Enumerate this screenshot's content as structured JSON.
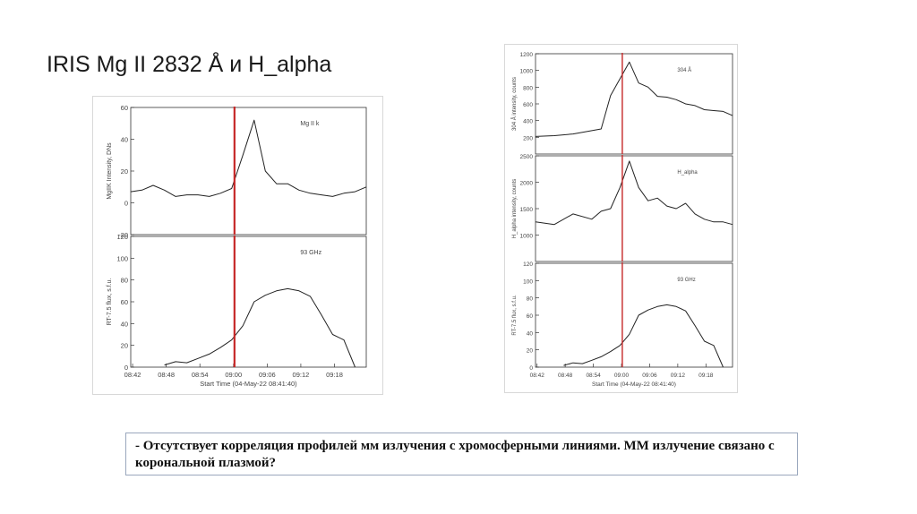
{
  "slide": {
    "title": "IRIS Mg II 2832 Å и H_alpha",
    "note": "- Отсутствует корреляция профилей мм излучения с хромосферными линиями. ММ излучение связано с корональной плазмой?"
  },
  "chart_data": [
    {
      "type": "line",
      "figure": "left",
      "ylabel": "MgIIK Intensity, DNs",
      "panel_label": "Mg II k",
      "ylim": [
        -20,
        60
      ],
      "yticks": [
        -20,
        0,
        20,
        40,
        60
      ],
      "xlim": [
        0,
        42
      ],
      "x_unit": "minutes since 08:41:40",
      "series": [
        {
          "x": [
            0,
            2,
            4,
            6,
            8,
            10,
            12,
            14,
            16,
            18,
            20,
            22,
            24,
            26,
            28,
            30,
            32,
            34,
            36,
            38,
            40,
            42
          ],
          "y": [
            7,
            8,
            11,
            8,
            4,
            5,
            5,
            4,
            6,
            9,
            30,
            52,
            20,
            12,
            12,
            8,
            6,
            5,
            4,
            6,
            7,
            10
          ]
        }
      ],
      "marker_line_x": 18.5,
      "marker_color": "#c62828"
    },
    {
      "type": "line",
      "figure": "left",
      "ylabel": "RT-7.5 flux, s.f.u.",
      "panel_label": "93 GHz",
      "ylim": [
        0,
        120
      ],
      "yticks": [
        0,
        20,
        40,
        60,
        80,
        100,
        120
      ],
      "xlim": [
        0,
        42
      ],
      "xticks": [
        "08:42",
        "08:48",
        "08:54",
        "09:00",
        "09:06",
        "09:12",
        "09:18"
      ],
      "xlabel": "Start Time (04-May-22 08:41:40)",
      "series": [
        {
          "x": [
            6,
            8,
            10,
            12,
            14,
            16,
            18,
            20,
            22,
            24,
            26,
            28,
            30,
            32,
            34,
            36,
            38,
            40
          ],
          "y": [
            2,
            5,
            4,
            8,
            12,
            18,
            25,
            38,
            60,
            66,
            70,
            72,
            70,
            65,
            48,
            30,
            25,
            0
          ]
        }
      ],
      "marker_line_x": 18.5,
      "marker_color": "#c62828"
    },
    {
      "type": "line",
      "figure": "right",
      "ylabel": "304 Å intensity, counts",
      "panel_label": "304 Å",
      "ylim": [
        0,
        1200
      ],
      "yticks": [
        200,
        400,
        600,
        800,
        1000,
        1200
      ],
      "xlim": [
        0,
        42
      ],
      "series": [
        {
          "x": [
            0,
            4,
            8,
            12,
            14,
            16,
            18,
            20,
            22,
            24,
            26,
            28,
            30,
            32,
            34,
            36,
            38,
            40,
            42
          ],
          "y": [
            210,
            220,
            240,
            280,
            300,
            700,
            900,
            1100,
            850,
            800,
            690,
            680,
            650,
            600,
            580,
            530,
            520,
            510,
            460
          ]
        }
      ],
      "marker_line_x": 18.5,
      "marker_color": "#c62828"
    },
    {
      "type": "line",
      "figure": "right",
      "ylabel": "H_alpha intensity, counts",
      "panel_label": "H_alpha",
      "ylim": [
        500,
        2500
      ],
      "yticks": [
        1000,
        1500,
        2000,
        2500
      ],
      "xlim": [
        0,
        42
      ],
      "series": [
        {
          "x": [
            0,
            4,
            8,
            12,
            14,
            16,
            18,
            20,
            22,
            24,
            26,
            28,
            30,
            32,
            34,
            36,
            38,
            40,
            42
          ],
          "y": [
            1250,
            1200,
            1400,
            1300,
            1450,
            1500,
            1900,
            2400,
            1900,
            1650,
            1700,
            1550,
            1500,
            1600,
            1400,
            1300,
            1250,
            1250,
            1200
          ]
        }
      ],
      "marker_line_x": 18.5,
      "marker_color": "#c62828"
    },
    {
      "type": "line",
      "figure": "right",
      "ylabel": "RT-7.5 flux, s.f.u.",
      "panel_label": "93 GHz",
      "ylim": [
        0,
        120
      ],
      "yticks": [
        0,
        20,
        40,
        60,
        80,
        100,
        120
      ],
      "xlim": [
        0,
        42
      ],
      "xticks": [
        "08:42",
        "08:48",
        "08:54",
        "09:00",
        "09:06",
        "09:12",
        "09:18"
      ],
      "xlabel": "Start Time (04-May-22 08:41:40)",
      "series": [
        {
          "x": [
            6,
            8,
            10,
            12,
            14,
            16,
            18,
            20,
            22,
            24,
            26,
            28,
            30,
            32,
            34,
            36,
            38,
            40
          ],
          "y": [
            2,
            5,
            4,
            8,
            12,
            18,
            25,
            38,
            60,
            66,
            70,
            72,
            70,
            65,
            48,
            30,
            25,
            0
          ]
        }
      ],
      "marker_line_x": 18.5,
      "marker_color": "#c62828"
    }
  ]
}
